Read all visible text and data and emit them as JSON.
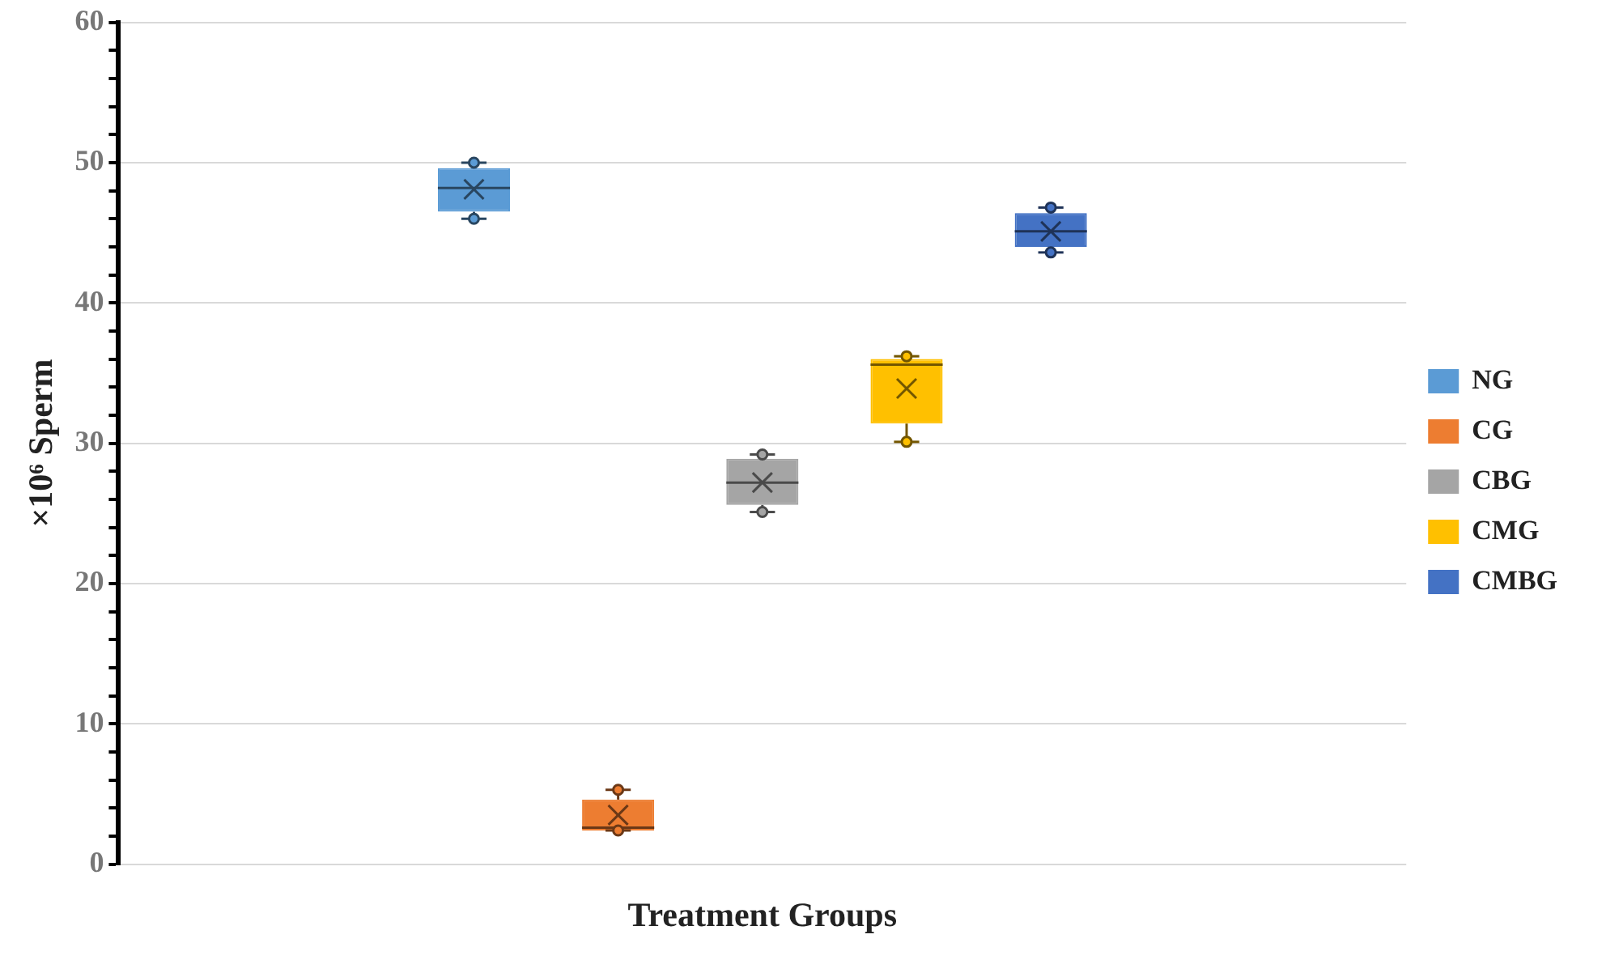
{
  "chart_data": {
    "type": "box",
    "xlabel": "Treatment Groups",
    "ylabel": "×10⁶ Sperm",
    "categories": [
      null
    ],
    "series": [
      {
        "name": "NG",
        "color": "#5b9bd5",
        "boxes": [
          {
            "low": 46.0,
            "q1": 46.5,
            "median": 48.2,
            "q3": 49.6,
            "high": 50.0,
            "mean": 48.1,
            "outliers": [
              50.0,
              46.0
            ]
          }
        ]
      },
      {
        "name": "CG",
        "color": "#ed7d31",
        "boxes": [
          {
            "low": 2.4,
            "q1": 2.4,
            "median": 2.6,
            "q3": 4.6,
            "high": 5.3,
            "mean": 3.5,
            "outliers": [
              5.3,
              2.4
            ]
          }
        ]
      },
      {
        "name": "CBG",
        "color": "#a5a5a5",
        "boxes": [
          {
            "low": 25.1,
            "q1": 25.6,
            "median": 27.2,
            "q3": 28.9,
            "high": 29.2,
            "mean": 27.2,
            "outliers": [
              29.2,
              25.1
            ]
          }
        ]
      },
      {
        "name": "CMG",
        "color": "#ffc000",
        "boxes": [
          {
            "low": 30.1,
            "q1": 31.4,
            "median": 35.6,
            "q3": 36.0,
            "high": 36.2,
            "mean": 33.9,
            "outliers": [
              36.2,
              30.1
            ]
          }
        ]
      },
      {
        "name": "CMBG",
        "color": "#4472c4",
        "boxes": [
          {
            "low": 43.6,
            "q1": 44.0,
            "median": 45.1,
            "q3": 46.4,
            "high": 46.8,
            "mean": 45.1,
            "outliers": [
              46.8,
              43.6
            ]
          }
        ]
      }
    ],
    "ylim": [
      0,
      60
    ],
    "yticks": [
      0,
      {
        "value": 2,
        "label": null
      },
      {
        "value": 4,
        "label": null
      },
      {
        "value": 6,
        "label": null
      },
      {
        "value": 8,
        "label": null
      },
      10,
      {
        "value": 12,
        "label": null
      },
      {
        "value": 14,
        "label": null
      },
      {
        "value": 16,
        "label": null
      },
      {
        "value": 18,
        "label": null
      },
      20,
      {
        "value": 22,
        "label": null
      },
      {
        "value": 24,
        "label": null
      },
      {
        "value": 26,
        "label": null
      },
      {
        "value": 28,
        "label": null
      },
      30,
      {
        "value": 32,
        "label": null
      },
      {
        "value": 34,
        "label": null
      },
      {
        "value": 36,
        "label": null
      },
      {
        "value": 38,
        "label": null
      },
      40,
      {
        "value": 42,
        "label": null
      },
      {
        "value": 44,
        "label": null
      },
      {
        "value": 46,
        "label": null
      },
      {
        "value": 48,
        "label": null
      },
      50,
      {
        "value": 52,
        "label": null
      },
      {
        "value": 54,
        "label": null
      },
      {
        "value": 56,
        "label": null
      },
      {
        "value": 58,
        "label": null
      },
      60
    ],
    "grid": "y",
    "legend": "right",
    "tick_labels": "y"
  }
}
